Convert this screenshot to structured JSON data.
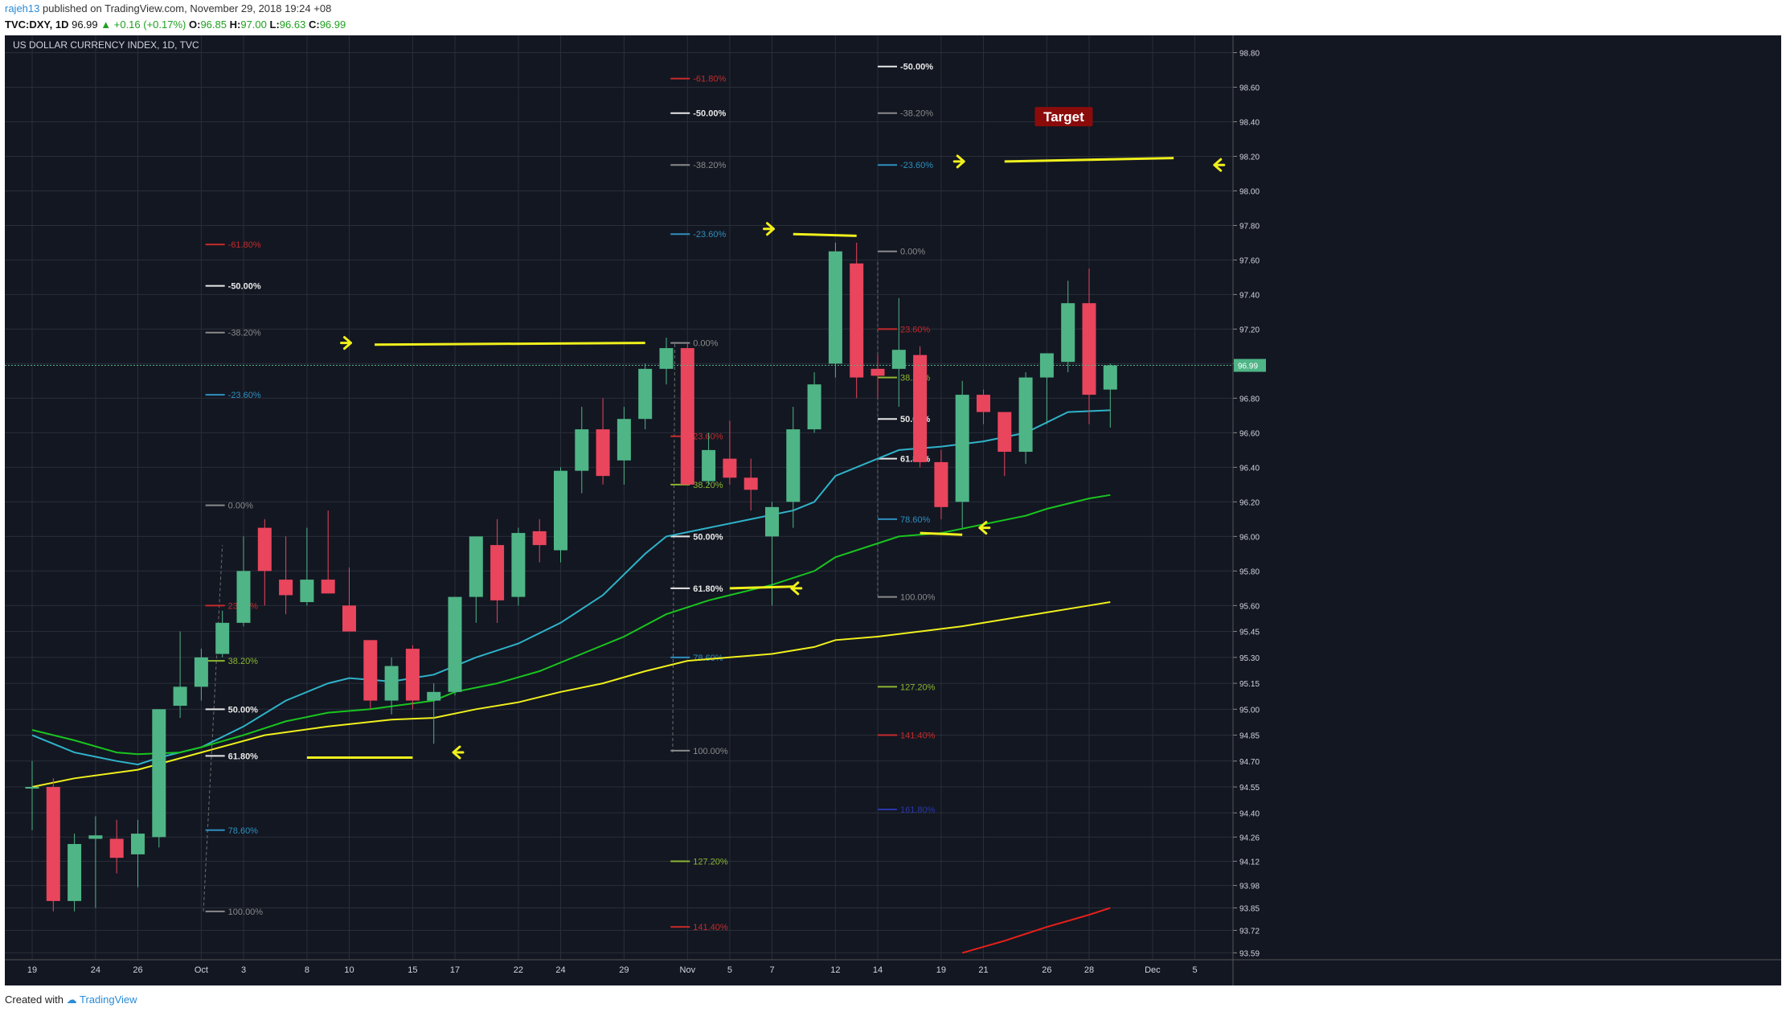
{
  "header": {
    "user": "rajeh13",
    "published": "published on TradingView.com, November 29, 2018 19:24 +08",
    "symbol": "TVC:DXY, 1D",
    "last": "96.99",
    "change": "▲ +0.16 (+0.17%)",
    "o_label": "O:",
    "o_val": "96.85",
    "h_label": "H:",
    "h_val": "97.00",
    "l_label": "L:",
    "l_val": "96.63",
    "c_label": "C:",
    "c_val": "96.99"
  },
  "footer": {
    "created": "Created with",
    "brand": "TradingView"
  },
  "chart_data": {
    "type": "candlestick",
    "title": "US DOLLAR CURRENCY INDEX, 1D, TVC",
    "ylim": [
      93.55,
      98.9
    ],
    "last_price_label": "96.99",
    "y_ticks": [
      "98.80",
      "98.60",
      "98.40",
      "98.20",
      "98.00",
      "97.80",
      "97.60",
      "97.40",
      "97.20",
      "97.00",
      "96.80",
      "96.60",
      "96.40",
      "96.20",
      "96.00",
      "95.80",
      "95.60",
      "95.45",
      "95.30",
      "95.15",
      "95.00",
      "94.85",
      "94.70",
      "94.55",
      "94.40",
      "94.26",
      "94.12",
      "93.98",
      "93.85",
      "93.72",
      "93.59"
    ],
    "y_tick_values": [
      98.8,
      98.6,
      98.4,
      98.2,
      98.0,
      97.8,
      97.6,
      97.4,
      97.2,
      97.0,
      96.8,
      96.6,
      96.4,
      96.2,
      96.0,
      95.8,
      95.6,
      95.45,
      95.3,
      95.15,
      95.0,
      94.85,
      94.7,
      94.55,
      94.4,
      94.26,
      94.12,
      93.98,
      93.85,
      93.72,
      93.59
    ],
    "x_ticks": [
      {
        "label": "19",
        "i": 0
      },
      {
        "label": "24",
        "i": 3
      },
      {
        "label": "26",
        "i": 5
      },
      {
        "label": "Oct",
        "i": 8
      },
      {
        "label": "3",
        "i": 10
      },
      {
        "label": "8",
        "i": 13
      },
      {
        "label": "10",
        "i": 15
      },
      {
        "label": "15",
        "i": 18
      },
      {
        "label": "17",
        "i": 20
      },
      {
        "label": "22",
        "i": 23
      },
      {
        "label": "24",
        "i": 25
      },
      {
        "label": "29",
        "i": 28
      },
      {
        "label": "Nov",
        "i": 31
      },
      {
        "label": "5",
        "i": 33
      },
      {
        "label": "7",
        "i": 35
      },
      {
        "label": "12",
        "i": 38
      },
      {
        "label": "14",
        "i": 40
      },
      {
        "label": "19",
        "i": 43
      },
      {
        "label": "21",
        "i": 45
      },
      {
        "label": "26",
        "i": 48
      },
      {
        "label": "28",
        "i": 50
      },
      {
        "label": "Dec",
        "i": 53
      },
      {
        "label": "5",
        "i": 55
      }
    ],
    "candles": [
      {
        "o": 94.55,
        "h": 94.7,
        "l": 94.3,
        "c": 94.55
      },
      {
        "o": 94.55,
        "h": 94.6,
        "l": 93.83,
        "c": 93.89
      },
      {
        "o": 93.89,
        "h": 94.28,
        "l": 93.83,
        "c": 94.22
      },
      {
        "o": 94.25,
        "h": 94.38,
        "l": 93.85,
        "c": 94.27
      },
      {
        "o": 94.25,
        "h": 94.36,
        "l": 94.05,
        "c": 94.14
      },
      {
        "o": 94.16,
        "h": 94.36,
        "l": 93.97,
        "c": 94.28
      },
      {
        "o": 94.26,
        "h": 95.0,
        "l": 94.2,
        "c": 95.0
      },
      {
        "o": 95.02,
        "h": 95.45,
        "l": 94.95,
        "c": 95.13
      },
      {
        "o": 95.13,
        "h": 95.35,
        "l": 95.05,
        "c": 95.3
      },
      {
        "o": 95.32,
        "h": 95.57,
        "l": 95.3,
        "c": 95.5
      },
      {
        "o": 95.5,
        "h": 96.0,
        "l": 95.48,
        "c": 95.8
      },
      {
        "o": 96.05,
        "h": 96.1,
        "l": 95.6,
        "c": 95.8
      },
      {
        "o": 95.75,
        "h": 96.0,
        "l": 95.55,
        "c": 95.66
      },
      {
        "o": 95.62,
        "h": 96.05,
        "l": 95.6,
        "c": 95.75
      },
      {
        "o": 95.75,
        "h": 96.15,
        "l": 95.67,
        "c": 95.67
      },
      {
        "o": 95.6,
        "h": 95.82,
        "l": 95.45,
        "c": 95.45
      },
      {
        "o": 95.4,
        "h": 95.4,
        "l": 95.0,
        "c": 95.05
      },
      {
        "o": 95.05,
        "h": 95.3,
        "l": 94.97,
        "c": 95.25
      },
      {
        "o": 95.35,
        "h": 95.37,
        "l": 95.0,
        "c": 95.05
      },
      {
        "o": 95.05,
        "h": 95.15,
        "l": 94.8,
        "c": 95.1
      },
      {
        "o": 95.1,
        "h": 95.65,
        "l": 95.08,
        "c": 95.65
      },
      {
        "o": 95.65,
        "h": 96.0,
        "l": 95.5,
        "c": 96.0
      },
      {
        "o": 95.95,
        "h": 96.1,
        "l": 95.5,
        "c": 95.63
      },
      {
        "o": 95.65,
        "h": 96.05,
        "l": 95.6,
        "c": 96.02
      },
      {
        "o": 96.03,
        "h": 96.1,
        "l": 95.85,
        "c": 95.95
      },
      {
        "o": 95.92,
        "h": 96.4,
        "l": 95.85,
        "c": 96.38
      },
      {
        "o": 96.38,
        "h": 96.75,
        "l": 96.25,
        "c": 96.62
      },
      {
        "o": 96.62,
        "h": 96.8,
        "l": 96.3,
        "c": 96.35
      },
      {
        "o": 96.44,
        "h": 96.75,
        "l": 96.3,
        "c": 96.68
      },
      {
        "o": 96.68,
        "h": 97.0,
        "l": 96.62,
        "c": 96.97
      },
      {
        "o": 96.97,
        "h": 97.15,
        "l": 96.88,
        "c": 97.09
      },
      {
        "o": 97.09,
        "h": 97.12,
        "l": 96.3,
        "c": 96.3
      },
      {
        "o": 96.32,
        "h": 96.6,
        "l": 96.3,
        "c": 96.5
      },
      {
        "o": 96.45,
        "h": 96.67,
        "l": 96.3,
        "c": 96.34
      },
      {
        "o": 96.34,
        "h": 96.45,
        "l": 96.15,
        "c": 96.27
      },
      {
        "o": 96.0,
        "h": 96.2,
        "l": 95.6,
        "c": 96.17
      },
      {
        "o": 96.2,
        "h": 96.75,
        "l": 96.05,
        "c": 96.62
      },
      {
        "o": 96.62,
        "h": 96.95,
        "l": 96.6,
        "c": 96.88
      },
      {
        "o": 97.0,
        "h": 97.7,
        "l": 96.92,
        "c": 97.65
      },
      {
        "o": 97.58,
        "h": 97.7,
        "l": 96.8,
        "c": 96.92
      },
      {
        "o": 96.97,
        "h": 97.05,
        "l": 96.8,
        "c": 96.93
      },
      {
        "o": 96.97,
        "h": 97.38,
        "l": 96.75,
        "c": 97.08
      },
      {
        "o": 97.05,
        "h": 97.1,
        "l": 96.4,
        "c": 96.43
      },
      {
        "o": 96.43,
        "h": 96.5,
        "l": 96.1,
        "c": 96.17
      },
      {
        "o": 96.2,
        "h": 96.9,
        "l": 96.05,
        "c": 96.82
      },
      {
        "o": 96.82,
        "h": 96.85,
        "l": 96.65,
        "c": 96.72
      },
      {
        "o": 96.72,
        "h": 96.72,
        "l": 96.35,
        "c": 96.49
      },
      {
        "o": 96.49,
        "h": 96.95,
        "l": 96.42,
        "c": 96.92
      },
      {
        "o": 96.92,
        "h": 97.05,
        "l": 96.65,
        "c": 97.06
      },
      {
        "o": 97.01,
        "h": 97.48,
        "l": 96.95,
        "c": 97.35
      },
      {
        "o": 97.35,
        "h": 97.55,
        "l": 96.65,
        "c": 96.82
      },
      {
        "o": 96.85,
        "h": 97.0,
        "l": 96.63,
        "c": 96.99
      }
    ],
    "series": [
      {
        "color": "#2fb3c9",
        "values": [
          [
            0,
            94.85
          ],
          [
            1,
            94.8
          ],
          [
            2,
            94.75
          ],
          [
            4,
            94.7
          ],
          [
            5,
            94.68
          ],
          [
            6,
            94.72
          ],
          [
            8,
            94.78
          ],
          [
            10,
            94.9
          ],
          [
            12,
            95.05
          ],
          [
            14,
            95.15
          ],
          [
            15,
            95.18
          ],
          [
            17,
            95.16
          ],
          [
            19,
            95.2
          ],
          [
            21,
            95.3
          ],
          [
            23,
            95.38
          ],
          [
            25,
            95.5
          ],
          [
            27,
            95.66
          ],
          [
            29,
            95.9
          ],
          [
            30,
            96.0
          ],
          [
            32,
            96.05
          ],
          [
            34,
            96.1
          ],
          [
            36,
            96.15
          ],
          [
            37,
            96.2
          ],
          [
            38,
            96.35
          ],
          [
            40,
            96.45
          ],
          [
            41,
            96.5
          ],
          [
            43,
            96.52
          ],
          [
            45,
            96.55
          ],
          [
            47,
            96.6
          ],
          [
            49,
            96.72
          ],
          [
            51,
            96.73
          ]
        ]
      },
      {
        "color": "#19c41f",
        "values": [
          [
            0,
            94.88
          ],
          [
            2,
            94.82
          ],
          [
            4,
            94.75
          ],
          [
            5,
            94.74
          ],
          [
            7,
            94.75
          ],
          [
            8,
            94.78
          ],
          [
            10,
            94.85
          ],
          [
            12,
            94.93
          ],
          [
            14,
            94.98
          ],
          [
            16,
            95.0
          ],
          [
            19,
            95.05
          ],
          [
            20,
            95.1
          ],
          [
            22,
            95.15
          ],
          [
            24,
            95.22
          ],
          [
            26,
            95.32
          ],
          [
            28,
            95.42
          ],
          [
            30,
            95.55
          ],
          [
            32,
            95.63
          ],
          [
            35,
            95.72
          ],
          [
            37,
            95.8
          ],
          [
            38,
            95.88
          ],
          [
            40,
            95.96
          ],
          [
            41,
            96.0
          ],
          [
            43,
            96.02
          ],
          [
            45,
            96.07
          ],
          [
            47,
            96.12
          ],
          [
            48,
            96.16
          ],
          [
            50,
            96.22
          ],
          [
            51,
            96.24
          ]
        ]
      },
      {
        "color": "#f0f01c",
        "values": [
          [
            0,
            94.55
          ],
          [
            2,
            94.6
          ],
          [
            5,
            94.65
          ],
          [
            8,
            94.75
          ],
          [
            11,
            94.85
          ],
          [
            14,
            94.9
          ],
          [
            17,
            94.94
          ],
          [
            19,
            94.95
          ],
          [
            21,
            95.0
          ],
          [
            23,
            95.04
          ],
          [
            25,
            95.1
          ],
          [
            27,
            95.15
          ],
          [
            29,
            95.22
          ],
          [
            31,
            95.28
          ],
          [
            33,
            95.3
          ],
          [
            35,
            95.32
          ],
          [
            37,
            95.36
          ],
          [
            38,
            95.4
          ],
          [
            40,
            95.42
          ],
          [
            42,
            95.45
          ],
          [
            44,
            95.48
          ],
          [
            46,
            95.52
          ],
          [
            48,
            95.56
          ],
          [
            50,
            95.6
          ],
          [
            51,
            95.62
          ]
        ]
      },
      {
        "color": "#e8201a",
        "values": [
          [
            44,
            93.59
          ],
          [
            46,
            93.66
          ],
          [
            48,
            93.74
          ],
          [
            50,
            93.81
          ],
          [
            51,
            93.85
          ]
        ]
      }
    ],
    "fib_sets": [
      {
        "x_from": 8.2,
        "x_to": 10.6,
        "anchor": [
          8.1,
          93.83,
          9.0,
          95.95
        ],
        "levels": [
          {
            "label": "-61.80%",
            "price": 97.69,
            "color": "#c42b2b"
          },
          {
            "label": "-50.00%",
            "price": 97.45,
            "color": "#e8e8e8"
          },
          {
            "label": "-38.20%",
            "price": 97.18,
            "color": "#8a8a8a"
          },
          {
            "label": "-23.60%",
            "price": 96.82,
            "color": "#2f8fbe"
          },
          {
            "label": "0.00%",
            "price": 96.18,
            "color": "#8a8a8a"
          },
          {
            "label": "23.60%",
            "price": 95.6,
            "color": "#c42b2b"
          },
          {
            "label": "38.20%",
            "price": 95.28,
            "color": "#8bb630"
          },
          {
            "label": "50.00%",
            "price": 95.0,
            "color": "#e8e8e8"
          },
          {
            "label": "61.80%",
            "price": 94.73,
            "color": "#e8e8e8"
          },
          {
            "label": "78.60%",
            "price": 94.3,
            "color": "#2f8fbe"
          },
          {
            "label": "100.00%",
            "price": 93.83,
            "color": "#8a8a8a"
          }
        ]
      },
      {
        "x_from": 30.2,
        "x_to": 32.6,
        "anchor": [
          30.3,
          94.75,
          30.4,
          97.12
        ],
        "levels": [
          {
            "label": "-61.80%",
            "price": 98.65,
            "color": "#c42b2b"
          },
          {
            "label": "-50.00%",
            "price": 98.45,
            "color": "#e8e8e8"
          },
          {
            "label": "-38.20%",
            "price": 98.15,
            "color": "#8a8a8a"
          },
          {
            "label": "-23.60%",
            "price": 97.75,
            "color": "#2f8fbe"
          },
          {
            "label": "0.00%",
            "price": 97.12,
            "color": "#8a8a8a"
          },
          {
            "label": "23.60%",
            "price": 96.58,
            "color": "#c42b2b"
          },
          {
            "label": "38.20%",
            "price": 96.3,
            "color": "#8bb630"
          },
          {
            "label": "50.00%",
            "price": 96.0,
            "color": "#e8e8e8"
          },
          {
            "label": "61.80%",
            "price": 95.7,
            "color": "#e8e8e8"
          },
          {
            "label": "78.60%",
            "price": 95.3,
            "color": "#2f8fbe"
          },
          {
            "label": "100.00%",
            "price": 94.76,
            "color": "#8a8a8a"
          },
          {
            "label": "127.20%",
            "price": 94.12,
            "color": "#8bb630"
          },
          {
            "label": "141.40%",
            "price": 93.74,
            "color": "#c42b2b"
          }
        ]
      },
      {
        "x_from": 40.0,
        "x_to": 40.1,
        "anchor": [
          40.0,
          95.65,
          40.0,
          97.6
        ],
        "levels": [
          {
            "label": "-50.00%",
            "price": 98.72,
            "color": "#e8e8e8"
          },
          {
            "label": "-38.20%",
            "price": 98.45,
            "color": "#8a8a8a"
          },
          {
            "label": "-23.60%",
            "price": 98.15,
            "color": "#2f8fbe"
          },
          {
            "label": "0.00%",
            "price": 97.65,
            "color": "#8a8a8a"
          },
          {
            "label": "23.60%",
            "price": 97.2,
            "color": "#c42b2b"
          },
          {
            "label": "38.20%",
            "price": 96.92,
            "color": "#8bb630"
          },
          {
            "label": "50.00%",
            "price": 96.68,
            "color": "#e8e8e8"
          },
          {
            "label": "61.80%",
            "price": 96.45,
            "color": "#e8e8e8"
          },
          {
            "label": "78.60%",
            "price": 96.1,
            "color": "#2f8fbe"
          },
          {
            "label": "100.00%",
            "price": 95.65,
            "color": "#8a8a8a"
          },
          {
            "label": "127.20%",
            "price": 95.13,
            "color": "#8bb630"
          },
          {
            "label": "141.40%",
            "price": 94.85,
            "color": "#c42b2b"
          },
          {
            "label": "161.80%",
            "price": 94.42,
            "color": "#2a37a8"
          }
        ]
      }
    ],
    "drawn_lines": [
      {
        "x1": 16.2,
        "y1": 97.11,
        "x2": 29.0,
        "y2": 97.12
      },
      {
        "x1": 13.0,
        "y1": 94.72,
        "x2": 18.0,
        "y2": 94.72
      },
      {
        "x1": 33.0,
        "y1": 95.7,
        "x2": 36.0,
        "y2": 95.71
      },
      {
        "x1": 36.0,
        "y1": 97.75,
        "x2": 39.0,
        "y2": 97.74
      },
      {
        "x1": 42.0,
        "y1": 96.02,
        "x2": 44.0,
        "y2": 96.01
      },
      {
        "x1": 46.0,
        "y1": 98.17,
        "x2": 54.0,
        "y2": 98.19
      }
    ],
    "arrows": [
      {
        "x": 15.0,
        "y": 97.12,
        "dir": "right"
      },
      {
        "x": 20.0,
        "y": 94.75,
        "dir": "left"
      },
      {
        "x": 35.0,
        "y": 97.78,
        "dir": "right"
      },
      {
        "x": 36.0,
        "y": 95.7,
        "dir": "left"
      },
      {
        "x": 44.0,
        "y": 98.17,
        "dir": "right"
      },
      {
        "x": 44.9,
        "y": 96.05,
        "dir": "left"
      },
      {
        "x": 56.0,
        "y": 98.15,
        "dir": "left"
      }
    ],
    "annotation": {
      "text": "Target",
      "x": 48.8,
      "y": 98.42
    }
  },
  "colors": {
    "bg": "#131722",
    "grid": "#2a2e39",
    "up": "#4fb586",
    "down": "#e9455d",
    "axis_text": "#d1d4dc",
    "line": "#f0f01c",
    "arrow": "#f0f01c",
    "target_bg": "#8b0b0b"
  }
}
